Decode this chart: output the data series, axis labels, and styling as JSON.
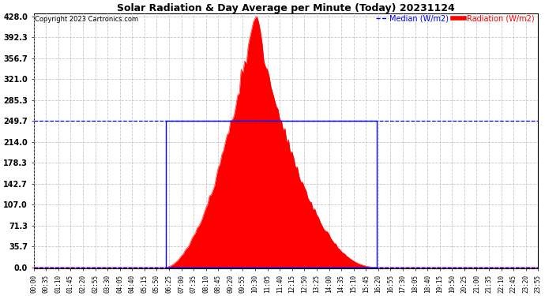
{
  "title": "Solar Radiation & Day Average per Minute (Today) 20231124",
  "copyright": "Copyright 2023 Cartronics.com",
  "legend_median_label": "Median (W/m2)",
  "legend_radiation_label": "Radiation (W/m2)",
  "yticks": [
    0.0,
    35.7,
    71.3,
    107.0,
    142.7,
    178.3,
    214.0,
    249.7,
    285.3,
    321.0,
    356.7,
    392.3,
    428.0
  ],
  "ymin": 0.0,
  "ymax": 428.0,
  "median_value": 249.7,
  "sunrise_index": 75,
  "sunset_index": 195,
  "total_minutes": 288,
  "background_color": "#ffffff",
  "radiation_color": "#ff0000",
  "median_color": "#0000ff",
  "box_color": "#0000ff",
  "grid_color": "#c0c0c0",
  "title_color": "#000000",
  "copyright_color": "#000000",
  "peak_radiation": 428.0,
  "peak_index": 126,
  "tick_step": 7,
  "figwidth": 6.9,
  "figheight": 3.75,
  "dpi": 100
}
